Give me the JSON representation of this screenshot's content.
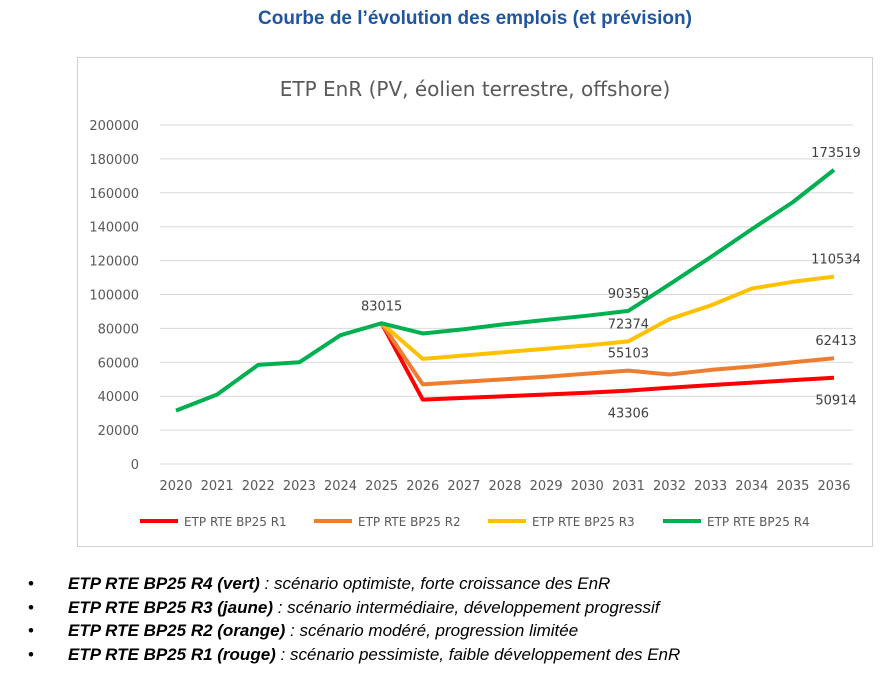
{
  "page_title": "Courbe de l’évolution des emplois (et prévision)",
  "chart_data": {
    "type": "line",
    "title": "ETP EnR (PV, éolien terrestre, offshore)",
    "xlabel": "",
    "ylabel": "",
    "ylim": [
      0,
      200000
    ],
    "yticks": [
      0,
      20000,
      40000,
      60000,
      80000,
      100000,
      120000,
      140000,
      160000,
      180000,
      200000
    ],
    "grid": true,
    "legend": "bottom",
    "x": [
      "2020",
      "2021",
      "2022",
      "2023",
      "2024",
      "2025",
      "2026",
      "2027",
      "2028",
      "2029",
      "2030",
      "2031",
      "2032",
      "2033",
      "2034",
      "2035",
      "2036"
    ],
    "series": [
      {
        "name": "ETP RTE BP25 R1",
        "color": "#ff0000",
        "values": [
          31500,
          41000,
          58500,
          60000,
          76000,
          83015,
          38000,
          39000,
          40000,
          41000,
          42000,
          43306,
          45000,
          46500,
          48000,
          49500,
          50914
        ]
      },
      {
        "name": "ETP RTE BP25 R2",
        "color": "#ed7d31",
        "values": [
          31500,
          41000,
          58500,
          60000,
          76000,
          83015,
          47000,
          48500,
          50000,
          51500,
          53300,
          55103,
          52800,
          55500,
          57500,
          60000,
          62413
        ]
      },
      {
        "name": "ETP RTE BP25 R3",
        "color": "#ffc000",
        "values": [
          31500,
          41000,
          58500,
          60000,
          76000,
          83015,
          62000,
          64000,
          66000,
          68000,
          70000,
          72374,
          85500,
          93500,
          103500,
          107500,
          110534
        ]
      },
      {
        "name": "ETP RTE BP25 R4",
        "color": "#00b050",
        "values": [
          31500,
          41000,
          58500,
          60000,
          76000,
          83015,
          77000,
          79500,
          82500,
          85000,
          87500,
          90359,
          106000,
          122000,
          138500,
          154500,
          173519
        ]
      }
    ],
    "data_labels": [
      {
        "x": "2025",
        "value": "83015",
        "pos": "above"
      },
      {
        "x": "2031",
        "value": "90359",
        "pos": "above"
      },
      {
        "x": "2031",
        "value": "72374",
        "pos": "above"
      },
      {
        "x": "2031",
        "value": "55103",
        "pos": "above"
      },
      {
        "x": "2031",
        "value": "43306",
        "pos": "below"
      },
      {
        "x": "2036",
        "value": "173519",
        "pos": "above"
      },
      {
        "x": "2036",
        "value": "110534",
        "pos": "above"
      },
      {
        "x": "2036",
        "value": "62413",
        "pos": "above"
      },
      {
        "x": "2036",
        "value": "50914",
        "pos": "below"
      }
    ]
  },
  "notes": [
    {
      "label": "ETP RTE BP25 R4 (vert)",
      "text": " : scénario optimiste, forte croissance des EnR"
    },
    {
      "label": "ETP RTE BP25 R3 (jaune)",
      "text": " : scénario intermédiaire, développement progressif"
    },
    {
      "label": "ETP RTE BP25 R2 (orange)",
      "text": " : scénario modéré, progression limitée"
    },
    {
      "label": "ETP RTE BP25 R1 (rouge)",
      "text": " : scénario pessimiste, faible développement des EnR"
    }
  ],
  "bullet": "•"
}
